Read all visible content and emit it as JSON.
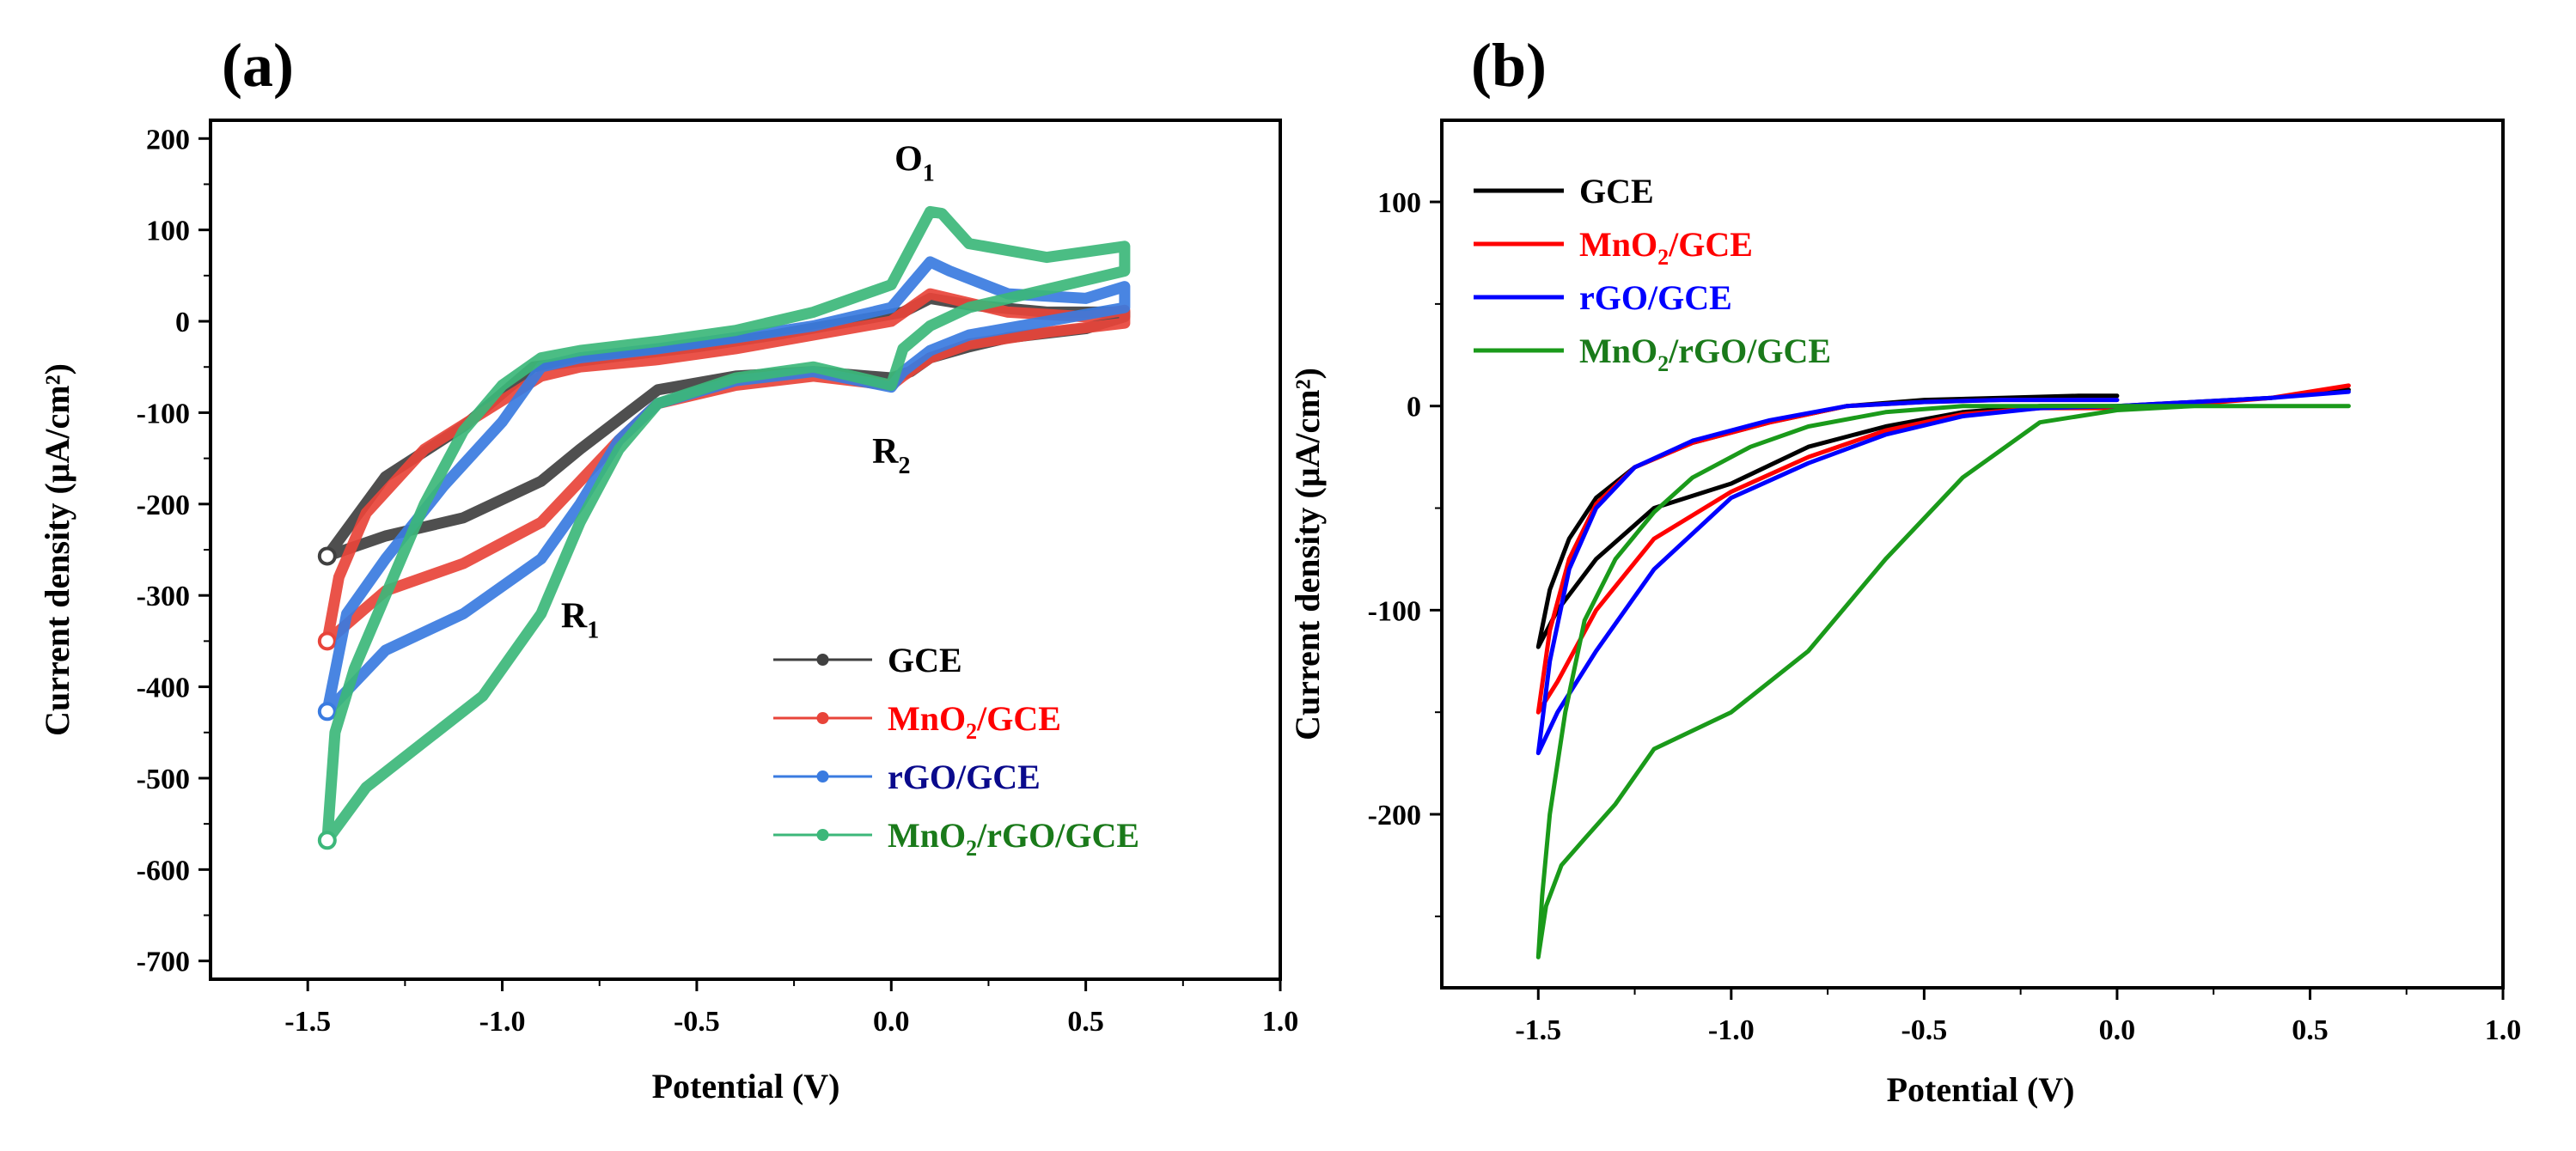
{
  "chart_data": [
    {
      "panel": "(a)",
      "type": "line",
      "title": "",
      "xlabel": "Potential (V)",
      "ylabel": "Current density (μA/cm²)",
      "xlim": [
        -1.75,
        1.0
      ],
      "ylim": [
        -720,
        220
      ],
      "xticks": [
        -1.5,
        -1.0,
        -0.5,
        0.0,
        0.5,
        1.0
      ],
      "yticks": [
        200,
        100,
        0,
        -100,
        -200,
        -300,
        -400,
        -500,
        -600,
        -700
      ],
      "xtick_labels": [
        "-1.5",
        "-1.0",
        "-0.5",
        "0.0",
        "0.5",
        "1.0"
      ],
      "ytick_labels": [
        "200",
        "100",
        "0",
        "-100",
        "-200",
        "-300",
        "-400",
        "-500",
        "-600",
        "-700"
      ],
      "legend_location": "lower-right",
      "marker_line": true,
      "annotations": [
        {
          "text": "O",
          "sub": "1",
          "x": 0.06,
          "y": 165
        },
        {
          "text": "R",
          "sub": "2",
          "x": 0.0,
          "y": -155
        },
        {
          "text": "R",
          "sub": "1",
          "x": -0.8,
          "y": -335
        }
      ],
      "series": [
        {
          "name": "GCE",
          "label_main": "GCE",
          "label_sub": "",
          "label_tail": "",
          "color": "#404040",
          "label_color": "#000000",
          "x": [
            -1.45,
            -1.3,
            -1.1,
            -0.92,
            -0.7,
            -0.5,
            -0.3,
            -0.1,
            0.03,
            0.1,
            0.2,
            0.4,
            0.6,
            0.6,
            0.5,
            0.3,
            0.2,
            0.1,
            0.05,
            0.0,
            -0.2,
            -0.4,
            -0.6,
            -0.8,
            -0.9,
            -1.1,
            -1.3,
            -1.45
          ],
          "y": [
            -257,
            -170,
            -115,
            -50,
            -38,
            -28,
            -15,
            0,
            10,
            25,
            18,
            10,
            10,
            5,
            -8,
            -18,
            -28,
            -40,
            -55,
            -62,
            -55,
            -60,
            -75,
            -140,
            -175,
            -215,
            -235,
            -257
          ]
        },
        {
          "name": "MnO2/GCE",
          "label_main": "MnO",
          "label_sub": "2",
          "label_tail": "/GCE",
          "color": "#e8443a",
          "label_color": "#ff0000",
          "x": [
            -1.45,
            -1.42,
            -1.35,
            -1.2,
            -1.05,
            -0.9,
            -0.8,
            -0.6,
            -0.4,
            -0.2,
            0.0,
            0.05,
            0.1,
            0.15,
            0.3,
            0.5,
            0.6,
            0.6,
            0.4,
            0.2,
            0.1,
            0.03,
            0.0,
            -0.2,
            -0.4,
            -0.6,
            -0.7,
            -0.8,
            -0.9,
            -1.1,
            -1.3,
            -1.45
          ],
          "y": [
            -350,
            -280,
            -210,
            -140,
            -100,
            -60,
            -50,
            -42,
            -30,
            -15,
            0,
            15,
            30,
            25,
            10,
            5,
            12,
            -2,
            -12,
            -25,
            -40,
            -60,
            -70,
            -60,
            -70,
            -90,
            -130,
            -175,
            -220,
            -265,
            -295,
            -350
          ]
        },
        {
          "name": "rGO/GCE",
          "label_main": "rGO/GCE",
          "label_sub": "",
          "label_tail": "",
          "color": "#3a7be0",
          "label_color": "#0a0a8c",
          "x": [
            -1.45,
            -1.4,
            -1.3,
            -1.15,
            -1.0,
            -0.9,
            -0.8,
            -0.6,
            -0.4,
            -0.2,
            0.0,
            0.05,
            0.1,
            0.15,
            0.3,
            0.5,
            0.6,
            0.6,
            0.4,
            0.2,
            0.1,
            0.03,
            0.0,
            -0.2,
            -0.4,
            -0.6,
            -0.7,
            -0.8,
            -0.9,
            -1.1,
            -1.3,
            -1.45
          ],
          "y": [
            -427,
            -320,
            -260,
            -180,
            -110,
            -50,
            -40,
            -30,
            -18,
            -5,
            15,
            40,
            65,
            55,
            30,
            25,
            38,
            15,
            0,
            -15,
            -32,
            -55,
            -72,
            -55,
            -65,
            -90,
            -130,
            -200,
            -260,
            -320,
            -360,
            -427
          ]
        },
        {
          "name": "MnO2/rGO/GCE",
          "label_main": "MnO",
          "label_sub": "2",
          "label_tail": "/rGO/GCE",
          "color": "#3cb77a",
          "label_color": "#1a7a1a",
          "x": [
            -1.45,
            -1.43,
            -1.38,
            -1.3,
            -1.2,
            -1.1,
            -1.0,
            -0.9,
            -0.8,
            -0.6,
            -0.4,
            -0.2,
            0.0,
            0.05,
            0.1,
            0.13,
            0.2,
            0.4,
            0.6,
            0.6,
            0.4,
            0.2,
            0.1,
            0.03,
            0.0,
            -0.2,
            -0.4,
            -0.6,
            -0.7,
            -0.8,
            -0.9,
            -1.05,
            -1.2,
            -1.35,
            -1.45
          ],
          "y": [
            -568,
            -450,
            -380,
            -300,
            -200,
            -120,
            -70,
            -40,
            -32,
            -22,
            -10,
            10,
            40,
            80,
            120,
            118,
            85,
            70,
            82,
            55,
            35,
            15,
            -5,
            -30,
            -70,
            -50,
            -62,
            -90,
            -140,
            -220,
            -320,
            -410,
            -460,
            -510,
            -568
          ]
        }
      ]
    },
    {
      "panel": "(b)",
      "type": "line",
      "title": "",
      "xlabel": "Potential (V)",
      "ylabel": "Current density (μA/cm²)",
      "xlim": [
        -1.75,
        1.0
      ],
      "ylim": [
        -285,
        140
      ],
      "xticks": [
        -1.5,
        -1.0,
        -0.5,
        0.0,
        0.5,
        1.0
      ],
      "yticks": [
        100,
        0,
        -100,
        -200
      ],
      "xtick_labels": [
        "-1.5",
        "-1.0",
        "-0.5",
        "0.0",
        "0.5",
        "1.0"
      ],
      "ytick_labels": [
        "100",
        "0",
        "-100",
        "-200"
      ],
      "legend_location": "top-left",
      "marker_line": false,
      "annotations": [],
      "series": [
        {
          "name": "GCE",
          "label_main": "GCE",
          "label_sub": "",
          "label_tail": "",
          "color": "#000000",
          "label_color": "#000000",
          "x": [
            -1.5,
            -1.47,
            -1.42,
            -1.35,
            -1.25,
            -1.1,
            -0.9,
            -0.7,
            -0.5,
            -0.3,
            -0.1,
            0.0,
            null,
            -1.5,
            -1.45,
            -1.35,
            -1.2,
            -1.0,
            -0.8,
            -0.6,
            -0.4,
            -0.2,
            0.0,
            0.2,
            0.4,
            0.6
          ],
          "y": [
            -118,
            -90,
            -65,
            -45,
            -30,
            -18,
            -8,
            0,
            3,
            4,
            5,
            5,
            null,
            -118,
            -100,
            -75,
            -50,
            -38,
            -20,
            -10,
            -3,
            0,
            0,
            2,
            4,
            8
          ]
        },
        {
          "name": "MnO2/GCE",
          "label_main": "MnO",
          "label_sub": "2",
          "label_tail": "/GCE",
          "color": "#ff0000",
          "label_color": "#ff0000",
          "x": [
            -1.5,
            -1.47,
            -1.42,
            -1.35,
            -1.25,
            -1.1,
            -0.9,
            -0.7,
            -0.5,
            -0.3,
            -0.1,
            0.0,
            null,
            -1.5,
            -1.45,
            -1.35,
            -1.2,
            -1.0,
            -0.8,
            -0.6,
            -0.4,
            -0.2,
            0.0,
            0.2,
            0.4,
            0.6
          ],
          "y": [
            -150,
            -110,
            -75,
            -48,
            -30,
            -18,
            -8,
            0,
            2,
            3,
            3,
            3,
            null,
            -150,
            -135,
            -100,
            -65,
            -42,
            -25,
            -12,
            -4,
            -1,
            -1,
            1,
            4,
            10
          ]
        },
        {
          "name": "rGO/GCE",
          "label_main": "rGO/GCE",
          "label_sub": "",
          "label_tail": "",
          "color": "#0000ff",
          "label_color": "#0000ff",
          "x": [
            -1.5,
            -1.47,
            -1.42,
            -1.35,
            -1.25,
            -1.1,
            -0.9,
            -0.7,
            -0.5,
            -0.3,
            -0.1,
            0.0,
            null,
            -1.5,
            -1.45,
            -1.35,
            -1.2,
            -1.0,
            -0.8,
            -0.6,
            -0.4,
            -0.2,
            0.0,
            0.2,
            0.4,
            0.6
          ],
          "y": [
            -170,
            -125,
            -80,
            -50,
            -30,
            -17,
            -7,
            0,
            2,
            3,
            3,
            3,
            null,
            -170,
            -150,
            -120,
            -80,
            -45,
            -28,
            -14,
            -5,
            -1,
            0,
            2,
            4,
            7
          ]
        },
        {
          "name": "MnO2/rGO/GCE",
          "label_main": "MnO",
          "label_sub": "2",
          "label_tail": "/rGO/GCE",
          "color": "#1a9a1a",
          "label_color": "#1a7a1a",
          "x": [
            -1.5,
            -1.49,
            -1.47,
            -1.43,
            -1.38,
            -1.3,
            -1.2,
            -1.1,
            -0.95,
            -0.8,
            -0.6,
            -0.4,
            -0.2,
            0.0,
            0.2,
            0.4,
            0.6,
            null,
            -1.5,
            -1.48,
            -1.44,
            -1.38,
            -1.3,
            -1.2,
            -1.0,
            -0.8,
            -0.6,
            -0.4,
            -0.2,
            0.0,
            0.2,
            0.4,
            0.6
          ],
          "y": [
            -270,
            -240,
            -200,
            -150,
            -105,
            -75,
            -52,
            -35,
            -20,
            -10,
            -3,
            0,
            0,
            0,
            0,
            0,
            0,
            null,
            -270,
            -245,
            -225,
            -212,
            -195,
            -168,
            -150,
            -120,
            -75,
            -35,
            -8,
            -2,
            0,
            0,
            0
          ]
        }
      ]
    }
  ]
}
